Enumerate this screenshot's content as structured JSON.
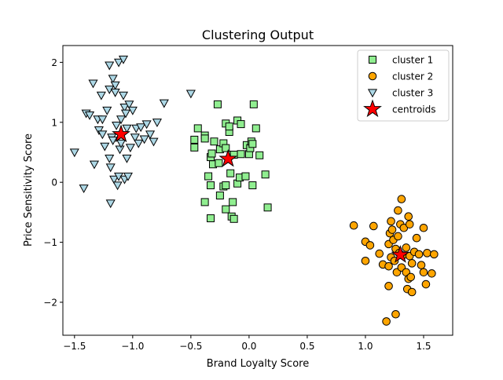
{
  "chart_data": {
    "type": "scatter",
    "title": "Clustering Output",
    "xlabel": "Brand Loyalty Score",
    "ylabel": "Price Sensitivity Score",
    "xlim": [
      -1.6,
      1.75
    ],
    "ylim": [
      -2.55,
      2.28
    ],
    "xticks": [
      -1.5,
      -1.0,
      -0.5,
      0.0,
      0.5,
      1.0,
      1.5
    ],
    "xtick_labels": [
      "−1.5",
      "−1.0",
      "−0.5",
      "0.0",
      "0.5",
      "1.0",
      "1.5"
    ],
    "yticks": [
      -2,
      -1,
      0,
      1,
      2
    ],
    "ytick_labels": [
      "−2",
      "−1",
      "0",
      "1",
      "2"
    ],
    "grid": false,
    "legend_position": "top-right",
    "series": [
      {
        "name": "cluster 1",
        "marker": "square",
        "color": "#90ee90",
        "points": [
          [
            -0.27,
            1.3
          ],
          [
            -0.47,
            0.58
          ],
          [
            -0.47,
            0.71
          ],
          [
            -0.44,
            0.9
          ],
          [
            -0.38,
            0.78
          ],
          [
            -0.38,
            0.73
          ],
          [
            -0.33,
            0.42
          ],
          [
            -0.32,
            0.48
          ],
          [
            -0.3,
            0.68
          ],
          [
            -0.25,
            0.55
          ],
          [
            -0.22,
            0.65
          ],
          [
            -0.2,
            0.57
          ],
          [
            -0.2,
            0.98
          ],
          [
            -0.17,
            0.84
          ],
          [
            -0.17,
            0.93
          ],
          [
            -0.15,
            0.46
          ],
          [
            -0.13,
            0.46
          ],
          [
            -0.1,
            1.03
          ],
          [
            -0.07,
            0.97
          ],
          [
            -0.02,
            0.62
          ],
          [
            0.0,
            0.47
          ],
          [
            0.01,
            0.57
          ],
          [
            0.02,
            0.68
          ],
          [
            0.04,
            1.3
          ],
          [
            0.06,
            0.9
          ],
          [
            0.09,
            0.45
          ],
          [
            0.03,
            0.64
          ],
          [
            -0.35,
            0.1
          ],
          [
            -0.31,
            0.3
          ],
          [
            -0.33,
            -0.05
          ],
          [
            -0.26,
            0.32
          ],
          [
            -0.25,
            -0.22
          ],
          [
            -0.22,
            -0.07
          ],
          [
            -0.2,
            -0.05
          ],
          [
            -0.16,
            0.15
          ],
          [
            -0.14,
            -0.33
          ],
          [
            -0.1,
            -0.02
          ],
          [
            -0.08,
            0.08
          ],
          [
            -0.03,
            0.1
          ],
          [
            0.03,
            -0.05
          ],
          [
            0.14,
            0.13
          ],
          [
            -0.38,
            -0.33
          ],
          [
            -0.33,
            -0.6
          ],
          [
            -0.2,
            -0.45
          ],
          [
            -0.15,
            -0.57
          ],
          [
            -0.13,
            -0.61
          ],
          [
            0.16,
            -0.42
          ],
          [
            -0.07,
            0.47
          ]
        ]
      },
      {
        "name": "cluster 2",
        "marker": "circle",
        "color": "#ffa500",
        "points": [
          [
            0.9,
            -0.72
          ],
          [
            1.0,
            -0.99
          ],
          [
            1.0,
            -1.31
          ],
          [
            1.04,
            -1.05
          ],
          [
            1.07,
            -0.73
          ],
          [
            1.12,
            -1.19
          ],
          [
            1.15,
            -1.37
          ],
          [
            1.18,
            -2.32
          ],
          [
            1.2,
            -1.03
          ],
          [
            1.2,
            -1.4
          ],
          [
            1.2,
            -1.73
          ],
          [
            1.21,
            -0.85
          ],
          [
            1.22,
            -0.65
          ],
          [
            1.22,
            -1.25
          ],
          [
            1.23,
            -0.79
          ],
          [
            1.24,
            -0.96
          ],
          [
            1.25,
            -1.31
          ],
          [
            1.26,
            -1.11
          ],
          [
            1.26,
            -2.2
          ],
          [
            1.27,
            -1.5
          ],
          [
            1.28,
            -0.9
          ],
          [
            1.28,
            -0.47
          ],
          [
            1.29,
            -1.18
          ],
          [
            1.3,
            -0.7
          ],
          [
            1.31,
            -1.42
          ],
          [
            1.31,
            -0.28
          ],
          [
            1.32,
            -1.22
          ],
          [
            1.33,
            -0.76
          ],
          [
            1.35,
            -1.09
          ],
          [
            1.35,
            -1.5
          ],
          [
            1.36,
            -1.78
          ],
          [
            1.37,
            -0.57
          ],
          [
            1.37,
            -1.61
          ],
          [
            1.38,
            -0.7
          ],
          [
            1.38,
            -1.23
          ],
          [
            1.39,
            -1.58
          ],
          [
            1.4,
            -1.35
          ],
          [
            1.4,
            -1.83
          ],
          [
            1.42,
            -1.16
          ],
          [
            1.44,
            -0.93
          ],
          [
            1.46,
            -1.2
          ],
          [
            1.48,
            -1.38
          ],
          [
            1.5,
            -0.76
          ],
          [
            1.5,
            -1.5
          ],
          [
            1.52,
            -1.7
          ],
          [
            1.53,
            -1.18
          ],
          [
            1.57,
            -1.52
          ],
          [
            1.59,
            -1.2
          ]
        ]
      },
      {
        "name": "cluster 3",
        "marker": "triangle-down",
        "color": "#add8e6",
        "points": [
          [
            -1.5,
            0.5
          ],
          [
            -1.42,
            -0.1
          ],
          [
            -1.4,
            1.15
          ],
          [
            -1.37,
            1.12
          ],
          [
            -1.34,
            1.65
          ],
          [
            -1.33,
            0.3
          ],
          [
            -1.3,
            1.05
          ],
          [
            -1.29,
            0.87
          ],
          [
            -1.27,
            1.45
          ],
          [
            -1.26,
            0.8
          ],
          [
            -1.24,
            0.6
          ],
          [
            -1.2,
            1.95
          ],
          [
            -1.2,
            1.55
          ],
          [
            -1.2,
            0.4
          ],
          [
            -1.19,
            0.25
          ],
          [
            -1.19,
            -0.35
          ],
          [
            -1.18,
            0.75
          ],
          [
            -1.17,
            0.7
          ],
          [
            -1.17,
            1.73
          ],
          [
            -1.16,
            0.05
          ],
          [
            -1.15,
            1.62
          ],
          [
            -1.15,
            1.5
          ],
          [
            -1.14,
            0.95
          ],
          [
            -1.13,
            -0.05
          ],
          [
            -1.12,
            2.0
          ],
          [
            -1.12,
            0.1
          ],
          [
            -1.11,
            0.55
          ],
          [
            -1.1,
            1.05
          ],
          [
            -1.1,
            0.65
          ],
          [
            -1.08,
            1.45
          ],
          [
            -1.07,
            1.25
          ],
          [
            -1.07,
            0.05
          ],
          [
            -1.06,
            1.15
          ],
          [
            -1.05,
            0.4
          ],
          [
            -1.05,
            0.9
          ],
          [
            -1.04,
            0.1
          ],
          [
            -1.03,
            1.3
          ],
          [
            -1.02,
            0.58
          ],
          [
            -1.0,
            1.2
          ],
          [
            -0.98,
            0.75
          ],
          [
            -0.97,
            0.9
          ],
          [
            -0.95,
            0.65
          ],
          [
            -0.93,
            0.92
          ],
          [
            -0.9,
            0.72
          ],
          [
            -0.88,
            0.97
          ],
          [
            -0.85,
            0.8
          ],
          [
            -0.82,
            0.68
          ],
          [
            -0.79,
            1.0
          ],
          [
            -1.08,
            2.05
          ],
          [
            -0.73,
            1.32
          ],
          [
            -0.5,
            1.48
          ],
          [
            -1.22,
            1.2
          ],
          [
            -1.26,
            1.05
          ]
        ]
      },
      {
        "name": "centroids",
        "marker": "star",
        "color": "#ff0000",
        "points": [
          [
            -1.1,
            0.8
          ],
          [
            -0.18,
            0.39
          ],
          [
            1.3,
            -1.21
          ]
        ]
      }
    ]
  }
}
